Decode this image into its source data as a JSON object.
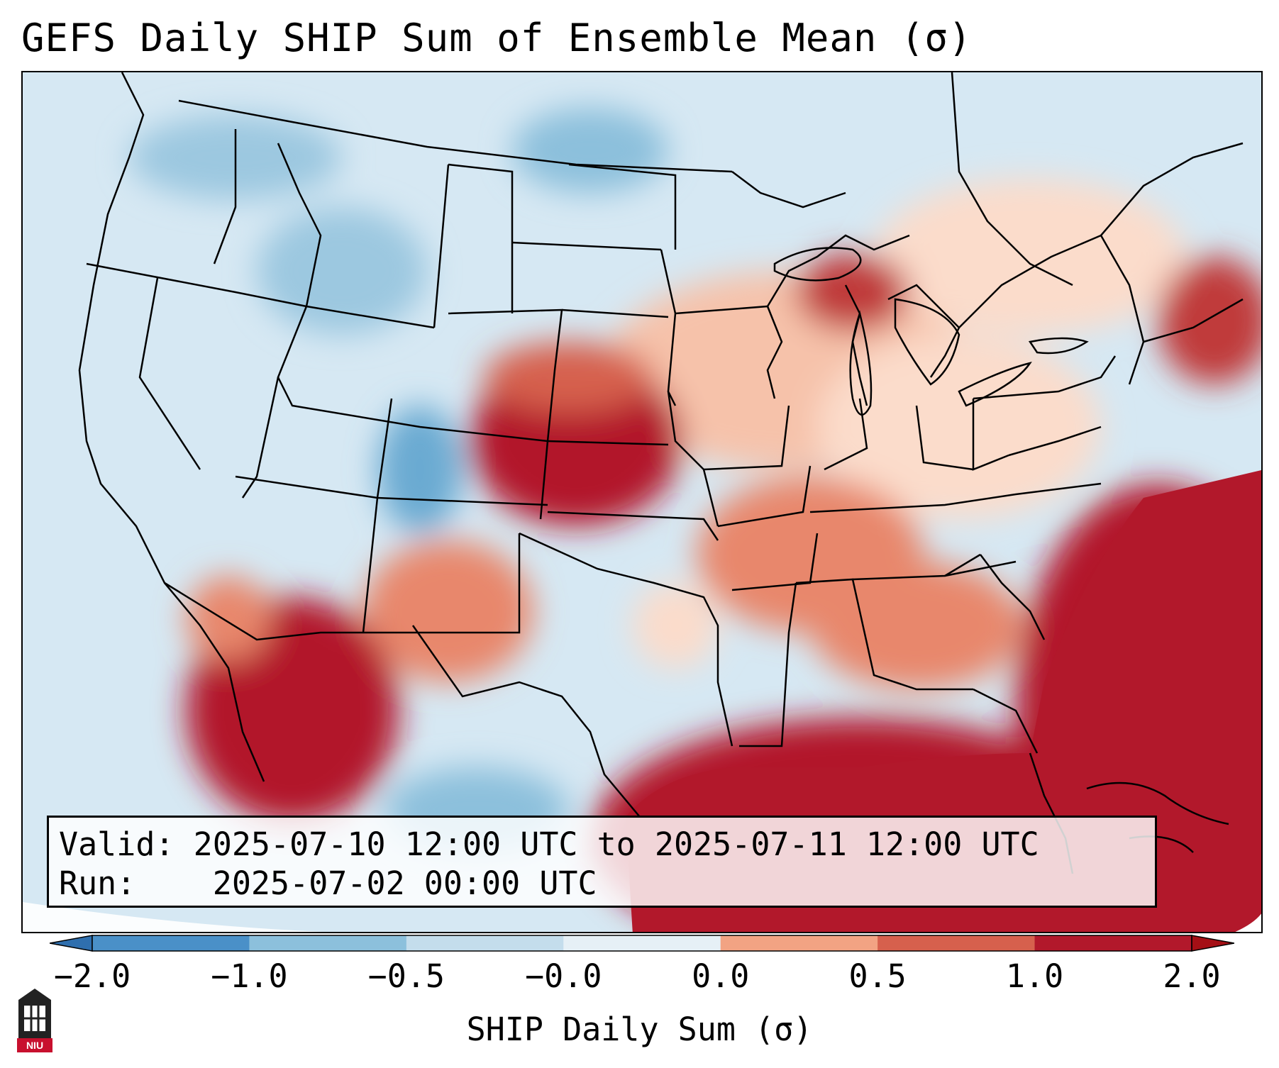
{
  "title": "GEFS Daily SHIP Sum of Ensemble Mean (σ)",
  "info_box": {
    "valid_label": "Valid:",
    "valid_value": "2025-07-10 12:00 UTC to 2025-07-11 12:00 UTC",
    "run_label": "Run:",
    "run_value": "2025-07-02 00:00 UTC"
  },
  "colorbar": {
    "label": "SHIP Daily Sum (σ)",
    "ticks": [
      "−2.0",
      "−1.0",
      "−0.5",
      "−0.0",
      "0.0",
      "0.5",
      "1.0",
      "2.0"
    ],
    "bin_colors": [
      "#4a90c8",
      "#8cc0dc",
      "#c4ddec",
      "#e6f0f6",
      "#fbe3d6",
      "#f2a383",
      "#d6604d",
      "#b2182b"
    ],
    "extend_low_color": "#2f6fae",
    "extend_high_color": "#a50f15"
  },
  "map": {
    "region": "Contiguous United States",
    "field": "SHIP daily sum anomaly",
    "units": "σ"
  },
  "logo": {
    "text": "NIU",
    "color": "#c8102e"
  }
}
